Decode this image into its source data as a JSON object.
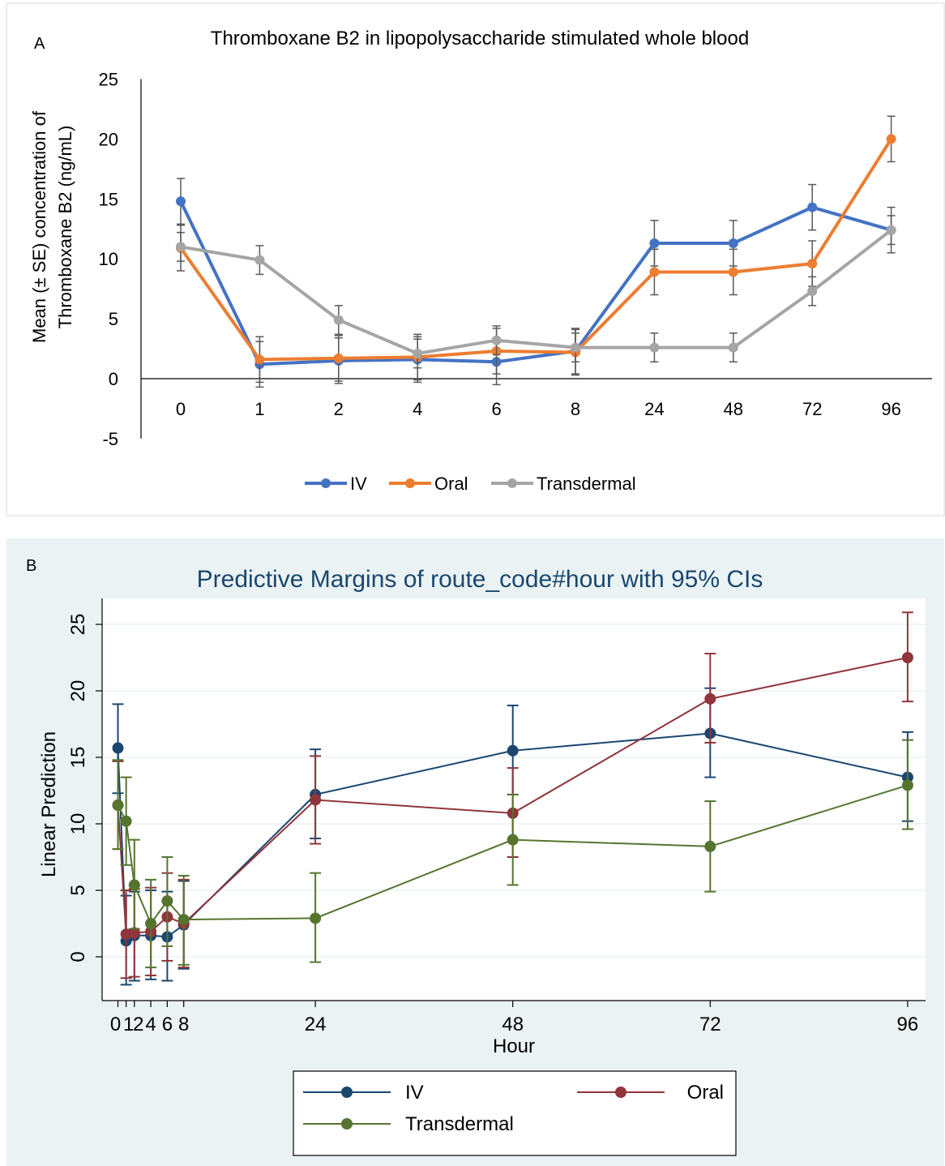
{
  "panels": {
    "a": {
      "label": "A"
    },
    "b": {
      "label": "B"
    }
  },
  "colors": {
    "panel_a": {
      "IV": "#4472c4",
      "Oral": "#ed7d31",
      "Transdermal": "#a5a5a5"
    },
    "panel_b": {
      "IV": "#1a476f",
      "Oral": "#90353b",
      "Transdermal": "#55752f"
    },
    "panel_b_background": "#eaf2f3",
    "panel_b_title": "#1a476f"
  },
  "chart_data": [
    {
      "type": "line",
      "title": "Thromboxane B2 in lipopolysaccharide stimulated whole blood",
      "ylabel_lines": [
        "Mean (± SE) concentration of",
        "Thromboxane B2  (ng/mL)"
      ],
      "xlabel": "",
      "categories": [
        "0",
        "1",
        "2",
        "4",
        "6",
        "8",
        "24",
        "48",
        "72",
        "96"
      ],
      "ylim": [
        -5,
        25
      ],
      "yticks": [
        -5,
        0,
        5,
        10,
        15,
        20,
        25
      ],
      "grid": false,
      "legend": "bottom",
      "series": [
        {
          "name": "IV",
          "values": [
            14.8,
            1.2,
            1.5,
            1.6,
            1.4,
            2.3,
            11.3,
            11.3,
            14.3,
            12.4
          ],
          "errors": [
            1.9,
            1.9,
            1.9,
            1.9,
            1.9,
            1.9,
            1.9,
            1.9,
            1.9,
            1.9
          ]
        },
        {
          "name": "Oral",
          "values": [
            10.9,
            1.6,
            1.7,
            1.8,
            2.3,
            2.2,
            8.9,
            8.9,
            9.6,
            20.0
          ],
          "errors": [
            1.9,
            1.9,
            1.9,
            1.9,
            1.9,
            1.9,
            1.9,
            1.9,
            1.9,
            1.9
          ]
        },
        {
          "name": "Transdermal",
          "values": [
            11.0,
            9.9,
            4.9,
            2.1,
            3.2,
            2.6,
            2.6,
            2.6,
            7.3,
            12.4
          ],
          "errors": [
            1.2,
            1.2,
            1.2,
            1.2,
            1.2,
            1.2,
            1.2,
            1.2,
            1.2,
            1.2
          ]
        }
      ]
    },
    {
      "type": "line",
      "title": "Predictive Margins of route_code#hour with 95% CIs",
      "xlabel": "Hour",
      "ylabel": "Linear Prediction",
      "x": [
        0,
        1,
        2,
        4,
        6,
        8,
        24,
        48,
        72,
        96
      ],
      "xticks": [
        0,
        1,
        2,
        4,
        6,
        8,
        24,
        48,
        72,
        96
      ],
      "xlim": [
        -1,
        97
      ],
      "ylim": [
        -3.2,
        27
      ],
      "yticks": [
        0,
        5,
        10,
        15,
        20,
        25
      ],
      "grid": true,
      "legend": "bottom",
      "series": [
        {
          "name": "IV",
          "values": [
            15.7,
            1.2,
            1.6,
            1.6,
            1.5,
            2.4,
            12.2,
            15.5,
            16.8,
            13.5
          ],
          "ci_low": [
            12.3,
            -2.1,
            -1.8,
            -1.7,
            -1.8,
            -0.9,
            8.9,
            12.2,
            13.5,
            10.2
          ],
          "ci_high": [
            19.0,
            4.6,
            4.9,
            5.0,
            4.9,
            5.7,
            15.6,
            18.9,
            20.2,
            16.9
          ]
        },
        {
          "name": "Oral",
          "values": [
            11.4,
            1.7,
            1.8,
            1.9,
            3.0,
            2.5,
            11.8,
            10.8,
            19.4,
            22.5
          ],
          "ci_low": [
            8.1,
            -1.6,
            -1.5,
            -1.4,
            -0.3,
            -0.8,
            8.5,
            7.5,
            16.1,
            19.2
          ],
          "ci_high": [
            14.7,
            5.0,
            5.1,
            5.2,
            6.3,
            5.8,
            15.1,
            14.2,
            22.8,
            25.9
          ]
        },
        {
          "name": "Transdermal",
          "values": [
            11.4,
            10.2,
            5.4,
            2.5,
            4.2,
            2.8,
            2.9,
            8.8,
            8.3,
            12.9
          ],
          "ci_low": [
            8.1,
            6.9,
            2.1,
            -0.8,
            0.8,
            -0.6,
            -0.4,
            5.4,
            4.9,
            9.6
          ],
          "ci_high": [
            14.8,
            13.5,
            8.8,
            5.8,
            7.5,
            6.1,
            6.3,
            12.2,
            11.7,
            16.3
          ]
        }
      ]
    }
  ]
}
